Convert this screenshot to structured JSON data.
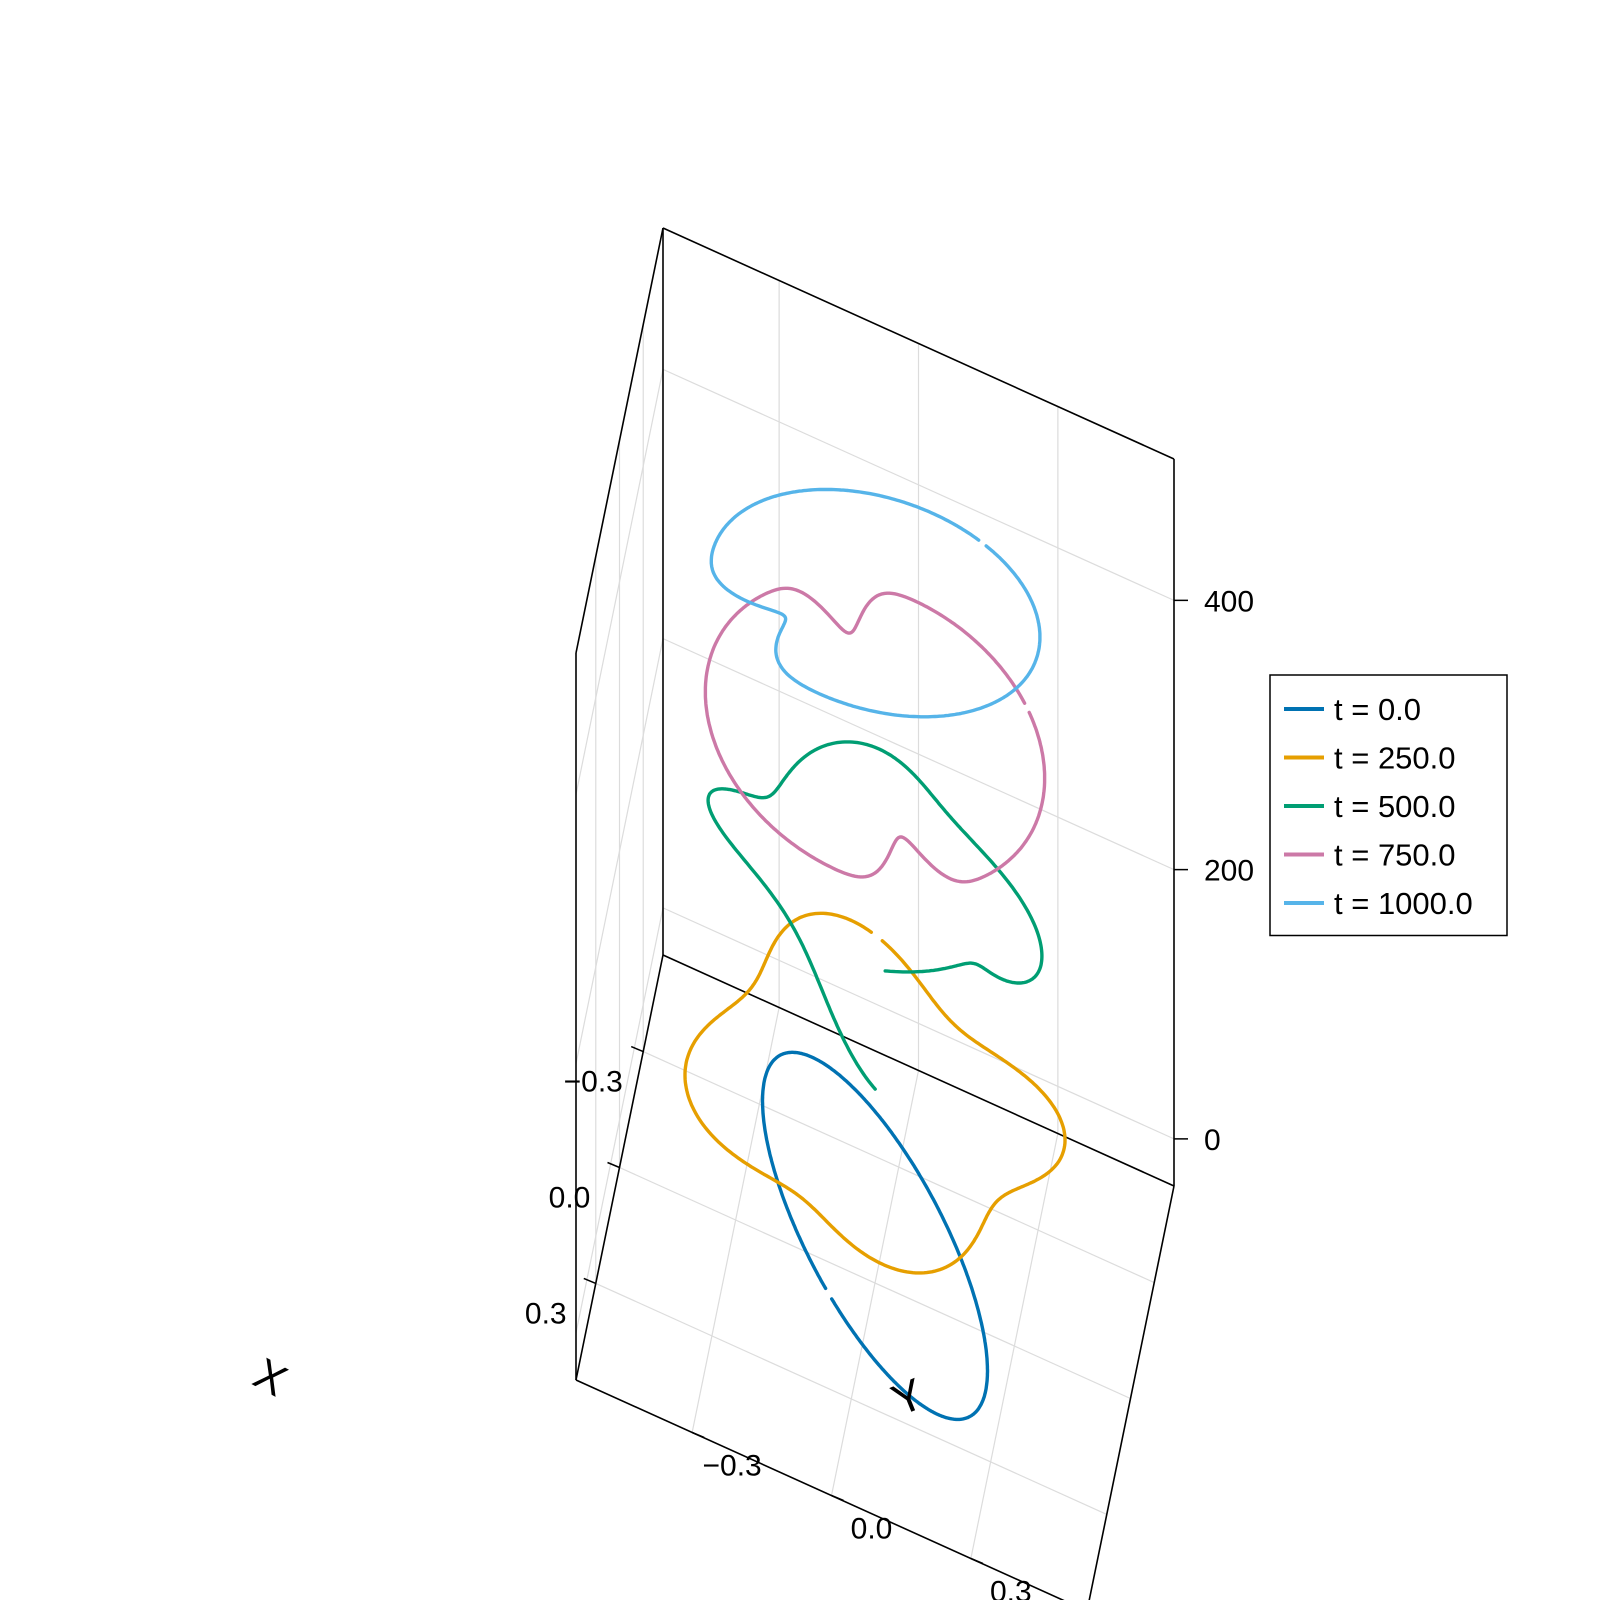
{
  "chart_data": {
    "type": "line3d",
    "axes": {
      "x": {
        "label": "X",
        "ticks": [
          -0.3,
          0.0,
          0.3
        ],
        "tick_labels": [
          "−0.3",
          "0.0",
          "0.3"
        ],
        "lim": [
          -0.55,
          0.55
        ]
      },
      "y": {
        "label": "Y",
        "ticks": [
          -0.3,
          0.0,
          0.3
        ],
        "tick_labels": [
          "−0.3",
          "0.0",
          "0.3"
        ],
        "lim": [
          -0.55,
          0.55
        ]
      },
      "z": {
        "label": "",
        "ticks": [
          0,
          200,
          400
        ],
        "tick_labels": [
          "0",
          "200",
          "400"
        ],
        "lim": [
          -35,
          505
        ]
      }
    },
    "grid": true,
    "legend": {
      "position": "right"
    },
    "series": [
      {
        "name": "t = 0.0",
        "color": "#0072B2",
        "z": 0,
        "radius_major": 0.42,
        "radius_minor": 0.17,
        "tilt": 0.62,
        "gap_angle": -1.3,
        "mode": "ellipse"
      },
      {
        "name": "t = 250.0",
        "color": "#E69F00",
        "z": 100,
        "radius_major": 0.36,
        "radius_minor": 0.36,
        "mode": "wavy",
        "wave_amp": 0.05,
        "wave_k": 4,
        "gap_angle": 3.3
      },
      {
        "name": "t = 500.0",
        "color": "#009E73",
        "z": 260,
        "radius_major": 0.32,
        "radius_minor": 0.32,
        "mode": "wobble",
        "wave_amp": 110,
        "wave_k": 2,
        "gap_angle": 0.2
      },
      {
        "name": "t = 750.0",
        "color": "#CC79A7",
        "z": 372,
        "radius_major": 0.36,
        "radius_minor": 0.36,
        "mode": "fold",
        "gap_angle": 2.2
      },
      {
        "name": "t = 1000.0",
        "color": "#56B4E9",
        "z": 470,
        "radius_major": 0.35,
        "radius_minor": 0.35,
        "mode": "spiral",
        "gap_angle": 2.6
      }
    ]
  }
}
